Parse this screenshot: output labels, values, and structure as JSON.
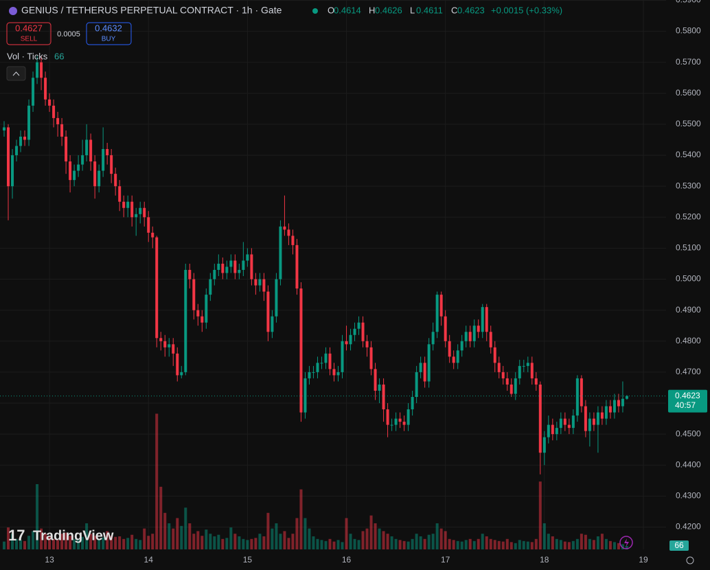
{
  "toolbar": {
    "title": "GENIUS / TETHERUS PERPETUAL CONTRACT · 1h · Gate",
    "ohlc": [
      {
        "label": "O",
        "value": 0.4614
      },
      {
        "label": "H",
        "value": 0.4626
      },
      {
        "label": "L",
        "value": 0.4611
      },
      {
        "label": "C",
        "value": 0.4623
      }
    ],
    "change": "+0.0015 (+0.33%)",
    "sell": {
      "price": 0.4627,
      "label": "SELL"
    },
    "spread": 0.0005,
    "buy": {
      "price": 0.4632,
      "label": "BUY"
    },
    "volume_legend": "Vol · Ticks",
    "volume_last": 66,
    "last_price": 0.4623,
    "countdown": "40:57",
    "watermark": "TradingView"
  },
  "chart_data": {
    "type": "candlestick",
    "up_color": "#089981",
    "down_color": "#f23645",
    "grid": true,
    "xlim": [
      -1,
      160.5
    ],
    "xticks": [
      {
        "value": 11,
        "label": "13"
      },
      {
        "value": 35,
        "label": "14"
      },
      {
        "value": 59,
        "label": "15"
      },
      {
        "value": 83,
        "label": "16"
      },
      {
        "value": 107,
        "label": "17"
      },
      {
        "value": 131,
        "label": "18"
      },
      {
        "value": 155,
        "label": "19"
      }
    ],
    "ylim": [
      0.4128,
      0.5901
    ],
    "yticks": [
      {
        "value": 0.59,
        "label": "0.5900"
      },
      {
        "value": 0.58,
        "label": "0.5800"
      },
      {
        "value": 0.57,
        "label": "0.5700"
      },
      {
        "value": 0.56,
        "label": "0.5600"
      },
      {
        "value": 0.55,
        "label": "0.5500"
      },
      {
        "value": 0.54,
        "label": "0.5400"
      },
      {
        "value": 0.53,
        "label": "0.5300"
      },
      {
        "value": 0.52,
        "label": "0.5200"
      },
      {
        "value": 0.51,
        "label": "0.5100"
      },
      {
        "value": 0.5,
        "label": "0.5000"
      },
      {
        "value": 0.49,
        "label": "0.4900"
      },
      {
        "value": 0.48,
        "label": "0.4800"
      },
      {
        "value": 0.47,
        "label": "0.4700"
      },
      {
        "value": 0.46,
        "label": "0.4600"
      },
      {
        "value": 0.45,
        "label": "0.4500"
      },
      {
        "value": 0.44,
        "label": "0.4400"
      },
      {
        "value": 0.43,
        "label": "0.4300"
      },
      {
        "value": 0.42,
        "label": "0.4200"
      }
    ],
    "vlim": [
      0,
      3000
    ],
    "open": [
      0.548,
      0.549,
      0.53,
      0.54,
      0.543,
      0.546,
      0.545,
      0.556,
      0.565,
      0.57,
      0.565,
      0.558,
      0.556,
      0.552,
      0.55,
      0.546,
      0.538,
      0.532,
      0.535,
      0.537,
      0.54,
      0.545,
      0.538,
      0.53,
      0.535,
      0.542,
      0.54,
      0.534,
      0.53,
      0.525,
      0.523,
      0.525,
      0.52,
      0.521,
      0.523,
      0.52,
      0.515,
      0.5135,
      0.481,
      0.48,
      0.478,
      0.479,
      0.476,
      0.469,
      0.47,
      0.503,
      0.5,
      0.49,
      0.488,
      0.486,
      0.495,
      0.5,
      0.503,
      0.505,
      0.502,
      0.504,
      0.506,
      0.502,
      0.503,
      0.506,
      0.508,
      0.5,
      0.498,
      0.5,
      0.496,
      0.483,
      0.488,
      0.5,
      0.517,
      0.516,
      0.514,
      0.511,
      0.497,
      0.457,
      0.468,
      0.47,
      0.47,
      0.473,
      0.473,
      0.476,
      0.471,
      0.469,
      0.47,
      0.48,
      0.479,
      0.482,
      0.484,
      0.486,
      0.48,
      0.478,
      0.471,
      0.464,
      0.466,
      0.458,
      0.453,
      0.453,
      0.455,
      0.454,
      0.453,
      0.458,
      0.462,
      0.47,
      0.473,
      0.467,
      0.479,
      0.483,
      0.495,
      0.488,
      0.48,
      0.475,
      0.473,
      0.477,
      0.48,
      0.483,
      0.48,
      0.485,
      0.483,
      0.491,
      0.483,
      0.478,
      0.473,
      0.47,
      0.468,
      0.466,
      0.463,
      0.468,
      0.472,
      0.472,
      0.473,
      0.468,
      0.466,
      0.444,
      0.449,
      0.453,
      0.45,
      0.452,
      0.455,
      0.453,
      0.452,
      0.456,
      0.468,
      0.459,
      0.451,
      0.455,
      0.453,
      0.457,
      0.455,
      0.459,
      0.457,
      0.461,
      0.459,
      0.4614
    ],
    "high": [
      0.551,
      0.55,
      0.542,
      0.545,
      0.548,
      0.548,
      0.558,
      0.567,
      0.572,
      0.572,
      0.567,
      0.56,
      0.558,
      0.554,
      0.552,
      0.548,
      0.54,
      0.537,
      0.54,
      0.545,
      0.55,
      0.547,
      0.54,
      0.537,
      0.549,
      0.544,
      0.542,
      0.536,
      0.532,
      0.527,
      0.527,
      0.527,
      0.523,
      0.525,
      0.525,
      0.522,
      0.517,
      0.514,
      0.483,
      0.482,
      0.481,
      0.481,
      0.478,
      0.472,
      0.505,
      0.505,
      0.502,
      0.492,
      0.49,
      0.497,
      0.502,
      0.505,
      0.508,
      0.507,
      0.506,
      0.508,
      0.508,
      0.505,
      0.512,
      0.51,
      0.51,
      0.502,
      0.502,
      0.502,
      0.498,
      0.49,
      0.502,
      0.519,
      0.527,
      0.518,
      0.516,
      0.513,
      0.499,
      0.47,
      0.472,
      0.472,
      0.475,
      0.475,
      0.478,
      0.478,
      0.473,
      0.472,
      0.482,
      0.485,
      0.484,
      0.486,
      0.488,
      0.488,
      0.482,
      0.48,
      0.473,
      0.468,
      0.468,
      0.46,
      0.455,
      0.457,
      0.457,
      0.456,
      0.46,
      0.464,
      0.472,
      0.475,
      0.475,
      0.481,
      0.486,
      0.496,
      0.496,
      0.49,
      0.482,
      0.477,
      0.479,
      0.482,
      0.485,
      0.485,
      0.487,
      0.487,
      0.492,
      0.492,
      0.485,
      0.48,
      0.475,
      0.472,
      0.47,
      0.468,
      0.47,
      0.474,
      0.474,
      0.475,
      0.475,
      0.47,
      0.467,
      0.451,
      0.456,
      0.455,
      0.454,
      0.457,
      0.457,
      0.455,
      0.458,
      0.469,
      0.469,
      0.461,
      0.457,
      0.457,
      0.459,
      0.459,
      0.461,
      0.461,
      0.463,
      0.463,
      0.467,
      0.4626
    ],
    "low": [
      0.546,
      0.519,
      0.526,
      0.538,
      0.541,
      0.543,
      0.543,
      0.554,
      0.563,
      0.561,
      0.556,
      0.554,
      0.549,
      0.546,
      0.543,
      0.534,
      0.528,
      0.53,
      0.533,
      0.535,
      0.538,
      0.535,
      0.526,
      0.528,
      0.533,
      0.537,
      0.531,
      0.527,
      0.522,
      0.52,
      0.52,
      0.517,
      0.514,
      0.518,
      0.517,
      0.512,
      0.51,
      0.478,
      0.477,
      0.475,
      0.475,
      0.472,
      0.467,
      0.468,
      0.469,
      0.497,
      0.487,
      0.485,
      0.483,
      0.484,
      0.493,
      0.498,
      0.501,
      0.5,
      0.5,
      0.502,
      0.5,
      0.5,
      0.501,
      0.504,
      0.498,
      0.495,
      0.496,
      0.493,
      0.48,
      0.481,
      0.486,
      0.498,
      0.514,
      0.511,
      0.508,
      0.495,
      0.454,
      0.455,
      0.466,
      0.468,
      0.468,
      0.471,
      0.471,
      0.469,
      0.467,
      0.467,
      0.468,
      0.477,
      0.477,
      0.48,
      0.482,
      0.478,
      0.475,
      0.469,
      0.461,
      0.46,
      0.454,
      0.449,
      0.451,
      0.451,
      0.452,
      0.451,
      0.451,
      0.456,
      0.46,
      0.468,
      0.465,
      0.465,
      0.477,
      0.481,
      0.485,
      0.478,
      0.473,
      0.471,
      0.471,
      0.475,
      0.478,
      0.478,
      0.478,
      0.481,
      0.481,
      0.48,
      0.476,
      0.47,
      0.468,
      0.466,
      0.464,
      0.462,
      0.461,
      0.466,
      0.47,
      0.47,
      0.466,
      0.464,
      0.437,
      0.44,
      0.447,
      0.448,
      0.448,
      0.45,
      0.451,
      0.45,
      0.45,
      0.454,
      0.457,
      0.449,
      0.446,
      0.451,
      0.444,
      0.453,
      0.453,
      0.455,
      0.455,
      0.457,
      0.457,
      0.4611
    ],
    "close": [
      0.549,
      0.53,
      0.54,
      0.543,
      0.546,
      0.545,
      0.556,
      0.565,
      0.57,
      0.565,
      0.558,
      0.556,
      0.552,
      0.55,
      0.546,
      0.538,
      0.532,
      0.535,
      0.537,
      0.54,
      0.545,
      0.538,
      0.53,
      0.535,
      0.542,
      0.54,
      0.534,
      0.53,
      0.525,
      0.523,
      0.525,
      0.52,
      0.521,
      0.523,
      0.52,
      0.515,
      0.5135,
      0.481,
      0.48,
      0.478,
      0.479,
      0.476,
      0.469,
      0.47,
      0.503,
      0.5,
      0.49,
      0.488,
      0.486,
      0.495,
      0.5,
      0.503,
      0.505,
      0.502,
      0.504,
      0.506,
      0.502,
      0.503,
      0.506,
      0.508,
      0.5,
      0.498,
      0.5,
      0.496,
      0.483,
      0.488,
      0.5,
      0.517,
      0.516,
      0.514,
      0.511,
      0.497,
      0.457,
      0.468,
      0.47,
      0.47,
      0.473,
      0.473,
      0.476,
      0.471,
      0.469,
      0.47,
      0.48,
      0.479,
      0.482,
      0.484,
      0.486,
      0.48,
      0.478,
      0.471,
      0.464,
      0.466,
      0.458,
      0.453,
      0.453,
      0.455,
      0.454,
      0.453,
      0.458,
      0.462,
      0.47,
      0.473,
      0.467,
      0.479,
      0.483,
      0.495,
      0.488,
      0.48,
      0.475,
      0.473,
      0.477,
      0.48,
      0.483,
      0.48,
      0.485,
      0.483,
      0.491,
      0.483,
      0.478,
      0.473,
      0.47,
      0.468,
      0.466,
      0.463,
      0.468,
      0.472,
      0.472,
      0.473,
      0.468,
      0.466,
      0.444,
      0.449,
      0.453,
      0.45,
      0.452,
      0.455,
      0.453,
      0.452,
      0.456,
      0.468,
      0.459,
      0.451,
      0.455,
      0.453,
      0.457,
      0.455,
      0.459,
      0.457,
      0.461,
      0.459,
      0.4614,
      0.4623
    ],
    "volume": [
      150,
      420,
      300,
      200,
      180,
      160,
      260,
      350,
      1250,
      400,
      300,
      250,
      200,
      180,
      300,
      320,
      260,
      200,
      180,
      240,
      500,
      300,
      260,
      200,
      230,
      350,
      260,
      240,
      250,
      200,
      220,
      280,
      200,
      180,
      400,
      260,
      300,
      2600,
      1200,
      700,
      500,
      400,
      600,
      450,
      800,
      500,
      300,
      350,
      260,
      380,
      300,
      250,
      280,
      200,
      220,
      420,
      300,
      250,
      200,
      180,
      200,
      220,
      300,
      250,
      700,
      400,
      500,
      300,
      350,
      220,
      300,
      600,
      1150,
      600,
      400,
      250,
      200,
      180,
      160,
      200,
      150,
      180,
      140,
      600,
      300,
      200,
      180,
      350,
      400,
      650,
      500,
      400,
      350,
      300,
      250,
      200,
      180,
      160,
      150,
      200,
      300,
      250,
      200,
      280,
      300,
      500,
      400,
      350,
      200,
      180,
      160,
      150,
      180,
      200,
      160,
      200,
      300,
      250,
      200,
      180,
      160,
      150,
      200,
      140,
      120,
      180,
      160,
      150,
      140,
      200,
      1300,
      500,
      300,
      250,
      200,
      180,
      150,
      140,
      160,
      200,
      300,
      280,
      200,
      180,
      250,
      300,
      200,
      160,
      140,
      120,
      100,
      66
    ]
  }
}
